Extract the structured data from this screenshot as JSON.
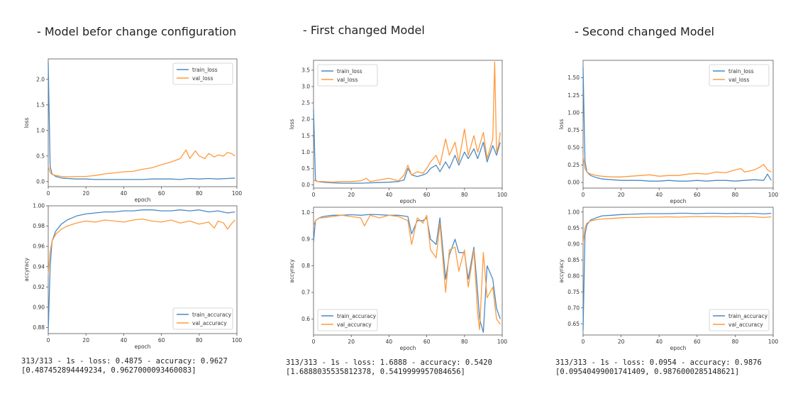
{
  "colors": {
    "train": "#4a8ac4",
    "val": "#ff9a3c",
    "frame": "#555555",
    "text": "#333333"
  },
  "panels": [
    {
      "title": "- Model befor change configuration",
      "stats_line1": "313/313 - 1s - loss: 0.4875 - accuracy: 0.9627",
      "stats_line2": "[0.487452894449234, 0.9627000093460083]"
    },
    {
      "title": "- First changed Model",
      "stats_line1": "313/313 - 1s - loss: 1.6888 - accuracy: 0.5420",
      "stats_line2": "[1.6888035535812378, 0.5419999957084656]"
    },
    {
      "title": "- Second changed Model",
      "stats_line1": "313/313 - 1s - loss: 0.0954 - accuracy: 0.9876",
      "stats_line2": "[0.09540499001741409, 0.9876000285148621]"
    }
  ],
  "chart_data": [
    {
      "type": "line",
      "xlabel": "epoch",
      "ylabel": "loss",
      "xlim": [
        0,
        100
      ],
      "ylim": [
        -0.1,
        2.4
      ],
      "xticks": [
        0,
        20,
        40,
        60,
        80,
        100
      ],
      "yticks": [
        0.0,
        0.5,
        1.0,
        1.5,
        2.0
      ],
      "legend": "top-right",
      "series": [
        {
          "name": "train_loss",
          "x": [
            0,
            1,
            2,
            4,
            7,
            10,
            15,
            20,
            25,
            30,
            35,
            40,
            45,
            50,
            55,
            60,
            65,
            70,
            75,
            80,
            85,
            90,
            95,
            99
          ],
          "y": [
            2.33,
            0.3,
            0.15,
            0.1,
            0.07,
            0.06,
            0.05,
            0.05,
            0.04,
            0.04,
            0.04,
            0.04,
            0.04,
            0.04,
            0.05,
            0.05,
            0.05,
            0.04,
            0.06,
            0.05,
            0.06,
            0.05,
            0.06,
            0.07
          ]
        },
        {
          "name": "val_loss",
          "x": [
            0,
            1,
            2,
            4,
            7,
            10,
            15,
            20,
            25,
            30,
            35,
            40,
            45,
            50,
            55,
            60,
            65,
            70,
            73,
            75,
            78,
            80,
            83,
            85,
            88,
            90,
            93,
            95,
            97,
            99
          ],
          "y": [
            0.3,
            0.18,
            0.14,
            0.12,
            0.1,
            0.09,
            0.1,
            0.1,
            0.12,
            0.15,
            0.17,
            0.19,
            0.2,
            0.24,
            0.27,
            0.33,
            0.38,
            0.45,
            0.62,
            0.45,
            0.6,
            0.5,
            0.45,
            0.55,
            0.48,
            0.52,
            0.5,
            0.57,
            0.55,
            0.5
          ]
        }
      ]
    },
    {
      "type": "line",
      "xlabel": "epoch",
      "ylabel": "accyracy",
      "xlim": [
        0,
        100
      ],
      "ylim": [
        0.874,
        1.0
      ],
      "xticks": [
        0,
        20,
        40,
        60,
        80,
        100
      ],
      "yticks": [
        0.88,
        0.9,
        0.92,
        0.94,
        0.96,
        0.98,
        1.0
      ],
      "legend": "bottom-right",
      "series": [
        {
          "name": "train_accuracy",
          "x": [
            0,
            1,
            2,
            4,
            7,
            10,
            15,
            20,
            25,
            30,
            35,
            40,
            45,
            50,
            55,
            60,
            65,
            70,
            75,
            80,
            85,
            90,
            95,
            99
          ],
          "y": [
            0.876,
            0.94,
            0.965,
            0.975,
            0.982,
            0.986,
            0.99,
            0.992,
            0.993,
            0.994,
            0.994,
            0.995,
            0.995,
            0.996,
            0.996,
            0.995,
            0.995,
            0.996,
            0.995,
            0.996,
            0.994,
            0.995,
            0.993,
            0.994
          ]
        },
        {
          "name": "val_accuracy",
          "x": [
            0,
            1,
            2,
            4,
            7,
            10,
            15,
            20,
            25,
            30,
            35,
            40,
            45,
            50,
            55,
            60,
            65,
            70,
            75,
            80,
            85,
            88,
            90,
            93,
            95,
            97,
            99
          ],
          "y": [
            0.932,
            0.955,
            0.965,
            0.972,
            0.977,
            0.98,
            0.983,
            0.985,
            0.984,
            0.986,
            0.985,
            0.984,
            0.986,
            0.987,
            0.985,
            0.984,
            0.986,
            0.983,
            0.985,
            0.982,
            0.984,
            0.978,
            0.985,
            0.983,
            0.977,
            0.982,
            0.986
          ]
        }
      ]
    },
    {
      "type": "line",
      "xlabel": "epoch",
      "ylabel": "loss",
      "xlim": [
        0,
        100
      ],
      "ylim": [
        -0.1,
        3.8
      ],
      "xticks": [
        0,
        20,
        40,
        60,
        80,
        100
      ],
      "yticks": [
        0.0,
        0.5,
        1.0,
        1.5,
        2.0,
        2.5,
        3.0,
        3.5
      ],
      "legend": "top-left",
      "series": [
        {
          "name": "train_loss",
          "x": [
            0,
            1,
            2,
            5,
            10,
            15,
            20,
            25,
            30,
            35,
            40,
            45,
            48,
            50,
            52,
            55,
            58,
            60,
            62,
            65,
            67,
            70,
            72,
            75,
            77,
            80,
            82,
            85,
            87,
            90,
            92,
            95,
            97,
            99
          ],
          "y": [
            2.3,
            0.15,
            0.1,
            0.08,
            0.06,
            0.05,
            0.05,
            0.05,
            0.06,
            0.07,
            0.08,
            0.1,
            0.15,
            0.5,
            0.3,
            0.25,
            0.3,
            0.35,
            0.5,
            0.6,
            0.4,
            0.7,
            0.5,
            0.9,
            0.6,
            1.0,
            0.8,
            1.1,
            0.8,
            1.3,
            0.7,
            1.2,
            0.9,
            1.3
          ]
        },
        {
          "name": "val_loss",
          "x": [
            0,
            1,
            2,
            5,
            10,
            15,
            20,
            25,
            28,
            30,
            35,
            40,
            45,
            48,
            50,
            52,
            55,
            58,
            60,
            62,
            65,
            67,
            70,
            72,
            75,
            77,
            80,
            82,
            85,
            87,
            90,
            92,
            95,
            96,
            97,
            98,
            99
          ],
          "y": [
            0.15,
            0.12,
            0.1,
            0.1,
            0.08,
            0.1,
            0.1,
            0.12,
            0.2,
            0.1,
            0.15,
            0.2,
            0.12,
            0.3,
            0.6,
            0.3,
            0.4,
            0.35,
            0.5,
            0.7,
            0.9,
            0.6,
            1.4,
            0.9,
            1.3,
            0.7,
            1.7,
            0.9,
            1.5,
            1.0,
            1.6,
            0.8,
            1.4,
            3.75,
            1.0,
            1.2,
            1.6
          ]
        }
      ]
    },
    {
      "type": "line",
      "xlabel": "epoch",
      "ylabel": "accyracy",
      "xlim": [
        0,
        100
      ],
      "ylim": [
        0.54,
        1.02
      ],
      "xticks": [
        0,
        20,
        40,
        60,
        80,
        100
      ],
      "yticks": [
        0.6,
        0.7,
        0.8,
        0.9,
        1.0
      ],
      "legend": "bottom-left",
      "series": [
        {
          "name": "train_accuracy",
          "x": [
            0,
            1,
            3,
            5,
            10,
            15,
            20,
            25,
            30,
            35,
            40,
            45,
            50,
            52,
            55,
            58,
            60,
            62,
            65,
            67,
            70,
            72,
            75,
            77,
            80,
            82,
            85,
            87,
            88,
            90,
            92,
            95,
            97,
            99
          ],
          "y": [
            0.89,
            0.97,
            0.98,
            0.985,
            0.99,
            0.99,
            0.992,
            0.99,
            0.993,
            0.992,
            0.99,
            0.99,
            0.985,
            0.92,
            0.97,
            0.97,
            0.98,
            0.9,
            0.88,
            0.98,
            0.75,
            0.84,
            0.9,
            0.85,
            0.85,
            0.75,
            0.87,
            0.7,
            0.6,
            0.55,
            0.8,
            0.75,
            0.64,
            0.6
          ]
        },
        {
          "name": "val_accuracy",
          "x": [
            0,
            1,
            3,
            5,
            10,
            15,
            20,
            25,
            27,
            30,
            35,
            40,
            45,
            50,
            52,
            55,
            58,
            60,
            62,
            65,
            67,
            70,
            72,
            75,
            77,
            80,
            82,
            85,
            87,
            88,
            90,
            92,
            95,
            97,
            99
          ],
          "y": [
            0.95,
            0.97,
            0.98,
            0.98,
            0.985,
            0.99,
            0.985,
            0.98,
            0.95,
            0.99,
            0.98,
            0.99,
            0.985,
            0.97,
            0.88,
            0.98,
            0.96,
            0.99,
            0.86,
            0.83,
            0.96,
            0.7,
            0.86,
            0.87,
            0.78,
            0.86,
            0.72,
            0.86,
            0.62,
            0.56,
            0.85,
            0.68,
            0.72,
            0.6,
            0.58
          ]
        }
      ]
    },
    {
      "type": "line",
      "xlabel": "epoch",
      "ylabel": "loss",
      "xlim": [
        0,
        100
      ],
      "ylim": [
        -0.08,
        1.75
      ],
      "xticks": [
        0,
        20,
        40,
        60,
        80,
        100
      ],
      "yticks": [
        0.0,
        0.25,
        0.5,
        0.75,
        1.0,
        1.25,
        1.5
      ],
      "legend": "top-right",
      "series": [
        {
          "name": "train_loss",
          "x": [
            0,
            1,
            2,
            4,
            7,
            10,
            15,
            20,
            25,
            30,
            35,
            40,
            45,
            50,
            55,
            60,
            65,
            70,
            75,
            80,
            85,
            90,
            95,
            97,
            99
          ],
          "y": [
            1.65,
            0.3,
            0.15,
            0.1,
            0.07,
            0.05,
            0.04,
            0.03,
            0.03,
            0.03,
            0.02,
            0.02,
            0.03,
            0.02,
            0.02,
            0.03,
            0.02,
            0.03,
            0.03,
            0.02,
            0.03,
            0.04,
            0.03,
            0.12,
            0.03
          ]
        },
        {
          "name": "val_loss",
          "x": [
            0,
            1,
            2,
            4,
            7,
            10,
            15,
            20,
            25,
            30,
            35,
            40,
            45,
            50,
            55,
            60,
            65,
            70,
            75,
            80,
            83,
            85,
            90,
            93,
            95,
            97,
            99
          ],
          "y": [
            0.38,
            0.2,
            0.15,
            0.12,
            0.1,
            0.09,
            0.08,
            0.08,
            0.09,
            0.1,
            0.11,
            0.09,
            0.1,
            0.1,
            0.12,
            0.13,
            0.12,
            0.15,
            0.14,
            0.18,
            0.2,
            0.15,
            0.18,
            0.22,
            0.26,
            0.18,
            0.15
          ]
        }
      ]
    },
    {
      "type": "line",
      "xlabel": "epoch",
      "ylabel": "accyracy",
      "xlim": [
        0,
        100
      ],
      "ylim": [
        0.615,
        1.015
      ],
      "xticks": [
        0,
        20,
        40,
        60,
        80,
        100
      ],
      "yticks": [
        0.65,
        0.7,
        0.75,
        0.8,
        0.85,
        0.9,
        0.95,
        1.0
      ],
      "legend": "bottom-right",
      "series": [
        {
          "name": "train_accuracy",
          "x": [
            0,
            1,
            2,
            4,
            7,
            10,
            15,
            20,
            25,
            30,
            35,
            40,
            45,
            50,
            55,
            60,
            65,
            70,
            75,
            80,
            85,
            90,
            95,
            99
          ],
          "y": [
            0.63,
            0.93,
            0.96,
            0.975,
            0.982,
            0.988,
            0.99,
            0.992,
            0.993,
            0.994,
            0.995,
            0.995,
            0.995,
            0.996,
            0.996,
            0.995,
            0.996,
            0.996,
            0.995,
            0.996,
            0.995,
            0.996,
            0.994,
            0.996
          ]
        },
        {
          "name": "val_accuracy",
          "x": [
            0,
            1,
            2,
            4,
            7,
            10,
            15,
            20,
            25,
            30,
            35,
            40,
            45,
            50,
            55,
            60,
            65,
            70,
            75,
            80,
            85,
            90,
            95,
            99
          ],
          "y": [
            0.9,
            0.95,
            0.965,
            0.972,
            0.976,
            0.978,
            0.98,
            0.982,
            0.983,
            0.983,
            0.984,
            0.984,
            0.985,
            0.984,
            0.985,
            0.986,
            0.985,
            0.986,
            0.985,
            0.985,
            0.986,
            0.985,
            0.983,
            0.985
          ]
        }
      ]
    }
  ]
}
